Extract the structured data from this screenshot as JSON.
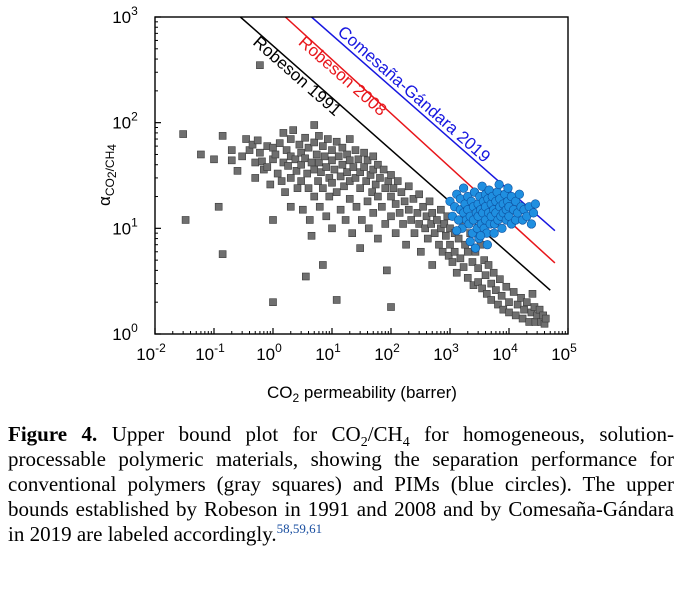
{
  "chart_data": {
    "type": "scatter",
    "xlabel": "CO2 permeability (barrer)",
    "ylabel": "αCO2/CH4",
    "x_scale": "log",
    "y_scale": "log",
    "xlim": [
      0.01,
      100000
    ],
    "ylim": [
      1,
      1000
    ],
    "x_ticks": [
      "10-2",
      "10-1",
      "100",
      "101",
      "102",
      "103",
      "104",
      "105"
    ],
    "y_ticks": [
      "100",
      "101",
      "102",
      "103"
    ],
    "grid": false,
    "upper_bounds": [
      {
        "name": "Robeson 1991",
        "color": "#000000",
        "points": [
          [
            0.28,
            1000
          ],
          [
            50000,
            2.6
          ]
        ]
      },
      {
        "name": "Robeson 2008",
        "color": "#e8161b",
        "points": [
          [
            1.62,
            1000
          ],
          [
            60000,
            4.7
          ]
        ]
      },
      {
        "name": "Comesaña-Gándara 2019",
        "color": "#1717e0",
        "points": [
          [
            4.5,
            1000
          ],
          [
            60000,
            9.5
          ]
        ]
      }
    ],
    "series": [
      {
        "marker": "square",
        "color": "#6f6f6f",
        "points": [
          [
            0.03,
            78
          ],
          [
            0.033,
            12
          ],
          [
            0.06,
            50
          ],
          [
            0.1,
            45
          ],
          [
            0.14,
            75
          ],
          [
            0.12,
            16
          ],
          [
            0.14,
            5.7
          ],
          [
            0.2,
            55
          ],
          [
            0.2,
            44
          ],
          [
            0.25,
            35
          ],
          [
            0.3,
            48
          ],
          [
            0.35,
            70
          ],
          [
            0.4,
            55
          ],
          [
            0.45,
            62
          ],
          [
            0.5,
            42
          ],
          [
            0.5,
            30
          ],
          [
            0.55,
            68
          ],
          [
            0.6,
            350
          ],
          [
            0.6,
            52
          ],
          [
            0.65,
            43
          ],
          [
            0.7,
            36
          ],
          [
            0.8,
            60
          ],
          [
            0.8,
            38
          ],
          [
            0.9,
            26
          ],
          [
            1.0,
            58
          ],
          [
            1.0,
            45
          ],
          [
            1.0,
            12
          ],
          [
            1.0,
            2.0
          ],
          [
            1.1,
            50
          ],
          [
            1.2,
            33
          ],
          [
            1.3,
            64
          ],
          [
            1.4,
            28
          ],
          [
            1.5,
            80
          ],
          [
            1.5,
            42
          ],
          [
            1.6,
            22
          ],
          [
            1.7,
            55
          ],
          [
            1.8,
            39
          ],
          [
            2.0,
            70
          ],
          [
            2.0,
            48
          ],
          [
            2.0,
            30
          ],
          [
            2.0,
            16
          ],
          [
            2.2,
            85
          ],
          [
            2.4,
            45
          ],
          [
            2.5,
            35
          ],
          [
            2.6,
            24
          ],
          [
            2.8,
            62
          ],
          [
            3.0,
            52
          ],
          [
            3.0,
            40
          ],
          [
            3.0,
            28
          ],
          [
            3.2,
            15
          ],
          [
            3.5,
            72
          ],
          [
            3.5,
            46
          ],
          [
            3.6,
            3.5
          ],
          [
            3.8,
            33
          ],
          [
            4.0,
            58
          ],
          [
            4.0,
            24
          ],
          [
            4.2,
            12
          ],
          [
            4.5,
            42
          ],
          [
            4.5,
            8.5
          ],
          [
            5.0,
            95
          ],
          [
            5.0,
            65
          ],
          [
            5.0,
            36
          ],
          [
            5.0,
            20
          ],
          [
            5.5,
            50
          ],
          [
            5.8,
            28
          ],
          [
            6.0,
            75
          ],
          [
            6.0,
            42
          ],
          [
            6.2,
            16
          ],
          [
            6.5,
            34
          ],
          [
            7.0,
            60
          ],
          [
            7.0,
            24
          ],
          [
            7.0,
            4.5
          ],
          [
            7.5,
            48
          ],
          [
            8.0,
            38
          ],
          [
            8.0,
            13
          ],
          [
            8.5,
            70
          ],
          [
            9.0,
            30
          ],
          [
            9.0,
            20
          ],
          [
            10,
            55
          ],
          [
            10,
            44
          ],
          [
            10,
            27
          ],
          [
            10,
            10
          ],
          [
            11,
            36
          ],
          [
            12,
            66
          ],
          [
            12,
            22
          ],
          [
            12,
            2.1
          ],
          [
            13,
            48
          ],
          [
            14,
            31
          ],
          [
            14,
            15
          ],
          [
            15,
            58
          ],
          [
            15,
            40
          ],
          [
            16,
            25
          ],
          [
            17,
            12
          ],
          [
            18,
            50
          ],
          [
            18,
            34
          ],
          [
            20,
            70
          ],
          [
            20,
            44
          ],
          [
            20,
            28
          ],
          [
            20,
            19
          ],
          [
            22,
            9
          ],
          [
            23,
            38
          ],
          [
            25,
            55
          ],
          [
            25,
            30
          ],
          [
            26,
            16
          ],
          [
            28,
            45
          ],
          [
            30,
            34
          ],
          [
            30,
            24
          ],
          [
            30,
            6.5
          ],
          [
            32,
            12
          ],
          [
            35,
            52
          ],
          [
            35,
            38
          ],
          [
            38,
            28
          ],
          [
            40,
            44
          ],
          [
            40,
            18
          ],
          [
            42,
            10
          ],
          [
            45,
            32
          ],
          [
            48,
            22
          ],
          [
            50,
            48
          ],
          [
            50,
            36
          ],
          [
            50,
            14
          ],
          [
            55,
            26
          ],
          [
            60,
            40
          ],
          [
            60,
            20
          ],
          [
            60,
            8
          ],
          [
            65,
            30
          ],
          [
            70,
            16
          ],
          [
            75,
            36
          ],
          [
            80,
            24
          ],
          [
            80,
            11
          ],
          [
            85,
            4.0
          ],
          [
            90,
            28
          ],
          [
            100,
            32
          ],
          [
            100,
            20
          ],
          [
            100,
            13
          ],
          [
            100,
            1.8
          ],
          [
            110,
            24
          ],
          [
            120,
            17
          ],
          [
            120,
            9
          ],
          [
            130,
            28
          ],
          [
            140,
            14
          ],
          [
            150,
            22
          ],
          [
            160,
            11
          ],
          [
            170,
            18
          ],
          [
            180,
            7
          ],
          [
            200,
            25
          ],
          [
            200,
            15
          ],
          [
            220,
            12
          ],
          [
            240,
            19
          ],
          [
            250,
            9
          ],
          [
            280,
            14
          ],
          [
            300,
            21
          ],
          [
            300,
            11
          ],
          [
            320,
            6
          ],
          [
            350,
            16
          ],
          [
            380,
            10
          ],
          [
            400,
            13
          ],
          [
            420,
            8
          ],
          [
            450,
            18
          ],
          [
            480,
            11
          ],
          [
            500,
            14
          ],
          [
            500,
            4.5
          ],
          [
            550,
            9
          ],
          [
            600,
            12
          ],
          [
            650,
            7
          ],
          [
            700,
            15
          ],
          [
            700,
            10
          ],
          [
            750,
            6
          ],
          [
            800,
            11
          ],
          [
            850,
            8.5
          ],
          [
            900,
            13
          ],
          [
            950,
            5.5
          ],
          [
            1000,
            10
          ],
          [
            1000,
            7
          ],
          [
            1100,
            4.8
          ],
          [
            1200,
            9
          ],
          [
            1200,
            6
          ],
          [
            1300,
            3.8
          ],
          [
            1400,
            8
          ],
          [
            1500,
            5.2
          ],
          [
            1600,
            12
          ],
          [
            1700,
            4.3
          ],
          [
            1800,
            7
          ],
          [
            2000,
            6
          ],
          [
            2000,
            3.4
          ],
          [
            2200,
            9
          ],
          [
            2400,
            4.8
          ],
          [
            2500,
            2.9
          ],
          [
            2700,
            6
          ],
          [
            3000,
            4.2
          ],
          [
            3000,
            3.1
          ],
          [
            3300,
            7
          ],
          [
            3500,
            2.7
          ],
          [
            3800,
            5
          ],
          [
            4000,
            3.6
          ],
          [
            4200,
            2.4
          ],
          [
            4500,
            4.5
          ],
          [
            5000,
            3.0
          ],
          [
            5000,
            2.1
          ],
          [
            5500,
            3.8
          ],
          [
            6000,
            2.6
          ],
          [
            6500,
            1.9
          ],
          [
            7000,
            3.3
          ],
          [
            7500,
            2.3
          ],
          [
            8000,
            1.7
          ],
          [
            9000,
            2.8
          ],
          [
            10000,
            2.0
          ],
          [
            10000,
            1.6
          ],
          [
            12000,
            2.5
          ],
          [
            13000,
            1.5
          ],
          [
            14000,
            1.9
          ],
          [
            16000,
            2.2
          ],
          [
            17000,
            1.4
          ],
          [
            18000,
            1.7
          ],
          [
            20000,
            2.0
          ],
          [
            22000,
            1.3
          ],
          [
            24000,
            1.6
          ],
          [
            25000,
            2.4
          ],
          [
            27000,
            1.8
          ],
          [
            28000,
            1.3
          ],
          [
            30000,
            1.5
          ],
          [
            33000,
            1.7
          ],
          [
            35000,
            1.3
          ],
          [
            38000,
            1.5
          ],
          [
            40000,
            1.25
          ],
          [
            42000,
            1.4
          ]
        ]
      },
      {
        "marker": "circle",
        "color": "#1f8fe0",
        "points": [
          [
            1000,
            18
          ],
          [
            1100,
            13
          ],
          [
            1200,
            16
          ],
          [
            1300,
            21
          ],
          [
            1400,
            12
          ],
          [
            1500,
            15
          ],
          [
            1500,
            19
          ],
          [
            1600,
            10
          ],
          [
            1700,
            14
          ],
          [
            1800,
            17
          ],
          [
            1900,
            12
          ],
          [
            2000,
            20
          ],
          [
            2000,
            15
          ],
          [
            2100,
            11
          ],
          [
            2200,
            13
          ],
          [
            2300,
            18
          ],
          [
            2400,
            9
          ],
          [
            2500,
            16
          ],
          [
            2500,
            12
          ],
          [
            2600,
            22
          ],
          [
            2800,
            14
          ],
          [
            2900,
            10
          ],
          [
            3000,
            17
          ],
          [
            3000,
            13
          ],
          [
            3100,
            8
          ],
          [
            3200,
            20
          ],
          [
            3300,
            15
          ],
          [
            3400,
            11
          ],
          [
            3500,
            25
          ],
          [
            3600,
            14
          ],
          [
            3700,
            18
          ],
          [
            3800,
            10
          ],
          [
            4000,
            21
          ],
          [
            4000,
            16
          ],
          [
            4000,
            12
          ],
          [
            4200,
            9
          ],
          [
            4400,
            19
          ],
          [
            4500,
            14
          ],
          [
            4600,
            23
          ],
          [
            4800,
            11
          ],
          [
            5000,
            17
          ],
          [
            5000,
            13
          ],
          [
            5200,
            20
          ],
          [
            5500,
            15
          ],
          [
            5700,
            11
          ],
          [
            6000,
            18
          ],
          [
            6000,
            14
          ],
          [
            6300,
            22
          ],
          [
            6500,
            12
          ],
          [
            7000,
            16
          ],
          [
            7000,
            19
          ],
          [
            7300,
            13
          ],
          [
            7600,
            10
          ],
          [
            8000,
            17
          ],
          [
            8000,
            14
          ],
          [
            8500,
            21
          ],
          [
            9000,
            15
          ],
          [
            9000,
            12
          ],
          [
            9500,
            18
          ],
          [
            10000,
            16
          ],
          [
            10000,
            13
          ],
          [
            11000,
            20
          ],
          [
            11000,
            11
          ],
          [
            12000,
            15
          ],
          [
            13000,
            18
          ],
          [
            13000,
            12
          ],
          [
            14000,
            14
          ],
          [
            15000,
            21
          ],
          [
            16000,
            16
          ],
          [
            17000,
            12
          ],
          [
            18000,
            15
          ],
          [
            20000,
            13
          ],
          [
            22000,
            16
          ],
          [
            24000,
            11
          ],
          [
            26000,
            14
          ],
          [
            28000,
            17
          ],
          [
            2200,
            7.5
          ],
          [
            2700,
            6.5
          ],
          [
            3300,
            8.5
          ],
          [
            4300,
            7
          ],
          [
            5600,
            9
          ],
          [
            1300,
            9.5
          ],
          [
            1700,
            24
          ],
          [
            6800,
            26
          ],
          [
            9600,
            24
          ]
        ]
      }
    ]
  },
  "caption": {
    "label": "Figure 4.",
    "text_before_sub": "Upper bound plot for CO",
    "sub_2": "2",
    "text_mid": "/CH",
    "sub_4": "4",
    "text_after": "for homogeneous, solution-processable polymeric materials, showing the separation performance for conventional polymers (gray squares) and PIMs (blue circles). The upper bounds established by Robeson in 1991 and 2008 and by Comesaña-Gándara in 2019 are labeled accordingly.",
    "refs": "58,59,61"
  }
}
